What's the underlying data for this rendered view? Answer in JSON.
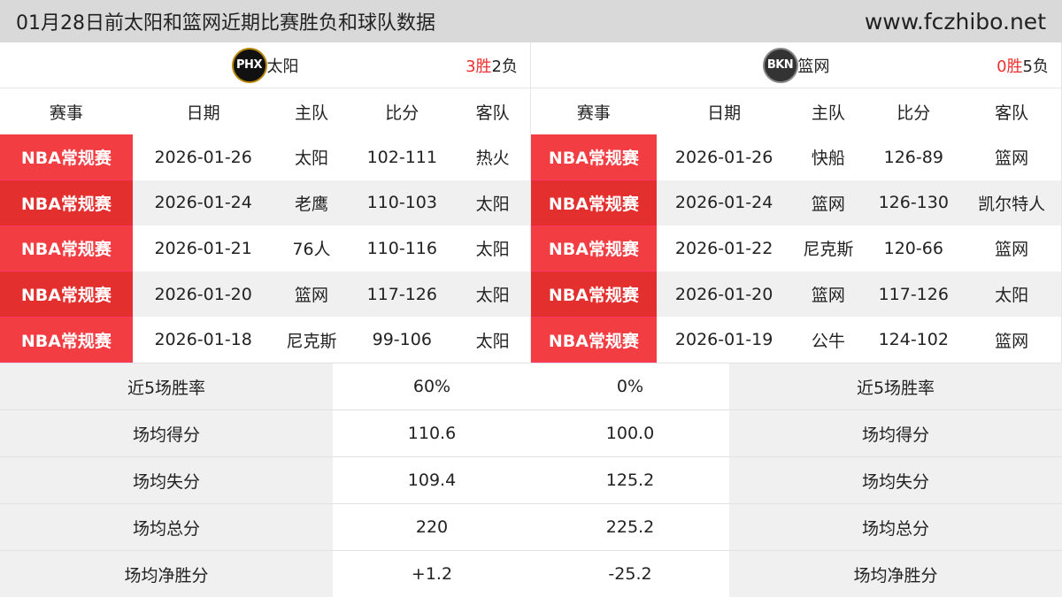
{
  "title": "01月28日前太阳和篮网近期比赛胜负和球队数据",
  "site": "www.fczhibo.net",
  "columns": [
    "赛事",
    "日期",
    "主队",
    "比分",
    "客队"
  ],
  "left": {
    "logo": "PHX",
    "team": "太阳",
    "wins": "3胜",
    "losses": "2负",
    "rows": [
      [
        "NBA常规赛",
        "2026-01-26",
        "太阳",
        "102-111",
        "热火"
      ],
      [
        "NBA常规赛",
        "2026-01-24",
        "老鹰",
        "110-103",
        "太阳"
      ],
      [
        "NBA常规赛",
        "2026-01-21",
        "76人",
        "110-116",
        "太阳"
      ],
      [
        "NBA常规赛",
        "2026-01-20",
        "篮网",
        "117-126",
        "太阳"
      ],
      [
        "NBA常规赛",
        "2026-01-18",
        "尼克斯",
        "99-106",
        "太阳"
      ]
    ]
  },
  "right": {
    "logo": "BKN",
    "team": "篮网",
    "wins": "0胜",
    "losses": "5负",
    "rows": [
      [
        "NBA常规赛",
        "2026-01-26",
        "快船",
        "126-89",
        "篮网"
      ],
      [
        "NBA常规赛",
        "2026-01-24",
        "篮网",
        "126-130",
        "凯尔特人"
      ],
      [
        "NBA常规赛",
        "2026-01-22",
        "尼克斯",
        "120-66",
        "篮网"
      ],
      [
        "NBA常规赛",
        "2026-01-20",
        "篮网",
        "117-126",
        "太阳"
      ],
      [
        "NBA常规赛",
        "2026-01-19",
        "公牛",
        "124-102",
        "篮网"
      ]
    ]
  },
  "stats": [
    {
      "label": "近5场胜率",
      "left": "60%",
      "right": "0%"
    },
    {
      "label": "场均得分",
      "left": "110.6",
      "right": "100.0"
    },
    {
      "label": "场均失分",
      "left": "109.4",
      "right": "125.2"
    },
    {
      "label": "场均总分",
      "left": "220",
      "right": "225.2"
    },
    {
      "label": "场均净胜分",
      "left": "+1.2",
      "right": "-25.2"
    }
  ]
}
